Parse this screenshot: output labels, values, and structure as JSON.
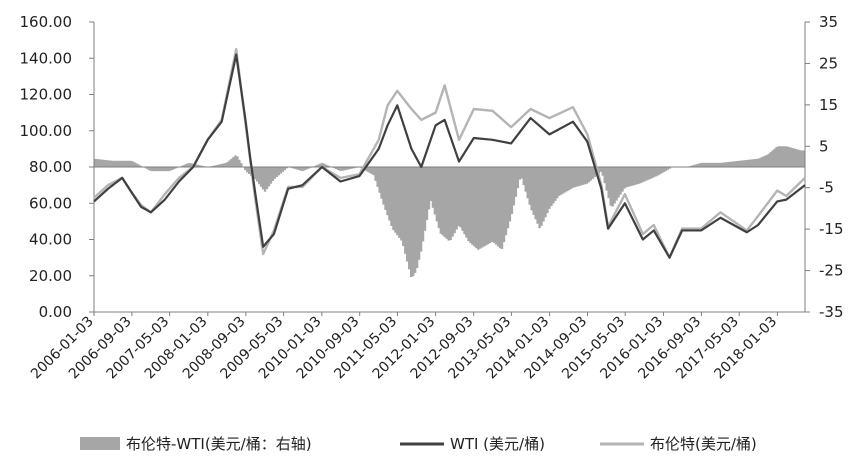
{
  "chart_data": {
    "type": "line",
    "title": "",
    "grid": false,
    "legend_position": "bottom",
    "colors": {
      "spread": "#a6a6a6",
      "wti": "#404040",
      "brent": "#b4b4b4",
      "axis": "#7f7f7f"
    },
    "left_axis": {
      "ylim": [
        0,
        160
      ],
      "tick_values": [
        0,
        20,
        40,
        60,
        80,
        100,
        120,
        140,
        160
      ],
      "tick_labels": [
        "0.00",
        "20.00",
        "40.00",
        "60.00",
        "80.00",
        "100.00",
        "120.00",
        "140.00",
        "160.00"
      ]
    },
    "right_axis": {
      "ylim": [
        -35,
        35
      ],
      "tick_values": [
        -35,
        -25,
        -15,
        -5,
        5,
        15,
        25,
        35
      ],
      "tick_labels": [
        "-35",
        "-25",
        "-15",
        "-5",
        "5",
        "15",
        "25",
        "35"
      ],
      "baseline": 0
    },
    "x_axis": {
      "range": [
        "2006-01-03",
        "2018-06-29"
      ],
      "tick_labels": [
        "2006-01-03",
        "2006-09-03",
        "2007-05-03",
        "2008-01-03",
        "2008-09-03",
        "2009-05-03",
        "2010-01-03",
        "2010-09-03",
        "2011-05-03",
        "2012-01-03",
        "2012-09-03",
        "2013-05-03",
        "2014-01-03",
        "2014-09-03",
        "2015-05-03",
        "2016-01-03",
        "2016-09-03",
        "2017-05-03",
        "2018-01-03"
      ]
    },
    "series": [
      {
        "key": "spread",
        "name": "布伦特-WTI(美元/桶：右轴)",
        "kind": "bar",
        "axis": "right",
        "x": [
          "2006-01-03",
          "2006-05-01",
          "2006-09-01",
          "2007-01-02",
          "2007-05-01",
          "2007-09-03",
          "2008-01-02",
          "2008-05-01",
          "2008-07-03",
          "2008-09-02",
          "2008-11-03",
          "2009-01-02",
          "2009-03-02",
          "2009-06-01",
          "2009-09-01",
          "2010-01-04",
          "2010-05-03",
          "2010-09-01",
          "2010-12-01",
          "2011-02-01",
          "2011-04-01",
          "2011-06-01",
          "2011-08-01",
          "2011-09-01",
          "2011-10-03",
          "2011-12-01",
          "2012-02-01",
          "2012-04-02",
          "2012-06-01",
          "2012-08-01",
          "2012-10-01",
          "2013-01-02",
          "2013-03-01",
          "2013-05-01",
          "2013-07-01",
          "2013-09-03",
          "2013-11-01",
          "2014-01-02",
          "2014-03-03",
          "2014-06-02",
          "2014-09-02",
          "2014-12-01",
          "2015-02-02",
          "2015-05-01",
          "2015-08-03",
          "2015-12-01",
          "2016-03-01",
          "2016-06-01",
          "2016-09-01",
          "2017-01-03",
          "2017-05-01",
          "2017-09-01",
          "2017-11-01",
          "2018-01-02",
          "2018-03-01",
          "2018-06-01"
        ],
        "values": [
          2,
          1.5,
          1.5,
          -1,
          -1,
          1,
          0,
          1,
          3,
          -1,
          -3,
          -6,
          -3,
          0,
          -1,
          1,
          -1,
          0,
          -2,
          -9,
          -15,
          -18,
          -27,
          -25,
          -20,
          -8,
          -16,
          -18,
          -14,
          -18,
          -20,
          -18,
          -20,
          -12,
          -2,
          -10,
          -15,
          -10,
          -7,
          -5,
          -4,
          -1,
          -10,
          -5,
          -4,
          -2,
          0,
          0,
          1,
          1,
          1.5,
          2,
          3,
          5,
          5,
          4
        ]
      },
      {
        "key": "wti",
        "name": "WTI (美元/桶)",
        "kind": "line",
        "axis": "left",
        "x": [
          "2006-01-03",
          "2006-04-03",
          "2006-07-03",
          "2006-09-01",
          "2006-11-01",
          "2007-01-03",
          "2007-04-02",
          "2007-07-02",
          "2007-10-01",
          "2008-01-02",
          "2008-04-01",
          "2008-07-03",
          "2008-09-02",
          "2008-10-01",
          "2008-11-03",
          "2008-12-23",
          "2009-03-02",
          "2009-06-01",
          "2009-09-01",
          "2010-01-04",
          "2010-05-03",
          "2010-09-01",
          "2011-01-03",
          "2011-03-01",
          "2011-05-02",
          "2011-08-01",
          "2011-10-03",
          "2012-01-03",
          "2012-03-01",
          "2012-06-01",
          "2012-09-04",
          "2013-01-02",
          "2013-05-01",
          "2013-09-03",
          "2014-01-02",
          "2014-06-02",
          "2014-09-02",
          "2014-12-01",
          "2015-01-13",
          "2015-05-01",
          "2015-08-24",
          "2015-11-02",
          "2016-02-11",
          "2016-05-02",
          "2016-09-01",
          "2017-01-03",
          "2017-06-21",
          "2017-09-01",
          "2018-01-02",
          "2018-03-01",
          "2018-06-29"
        ],
        "values": [
          61,
          68,
          74,
          66,
          58,
          55,
          62,
          72,
          80,
          95,
          105,
          142,
          105,
          85,
          65,
          36,
          43,
          68,
          70,
          80,
          72,
          75,
          90,
          103,
          114,
          90,
          80,
          103,
          106,
          83,
          96,
          95,
          93,
          107,
          98,
          105,
          94,
          68,
          46,
          60,
          40,
          45,
          30,
          45,
          45,
          52,
          44,
          48,
          61,
          62,
          70
        ]
      },
      {
        "key": "brent",
        "name": "布伦特(美元/桶)",
        "kind": "line",
        "axis": "left",
        "x": [
          "2006-01-03",
          "2006-04-03",
          "2006-07-03",
          "2006-09-01",
          "2006-11-01",
          "2007-01-03",
          "2007-04-02",
          "2007-07-02",
          "2007-10-01",
          "2008-01-02",
          "2008-04-01",
          "2008-07-03",
          "2008-09-02",
          "2008-10-01",
          "2008-11-03",
          "2008-12-23",
          "2009-03-02",
          "2009-06-01",
          "2009-09-01",
          "2010-01-04",
          "2010-05-03",
          "2010-09-01",
          "2011-01-03",
          "2011-03-01",
          "2011-05-02",
          "2011-08-01",
          "2011-10-03",
          "2012-01-03",
          "2012-03-01",
          "2012-06-01",
          "2012-09-04",
          "2013-01-02",
          "2013-05-01",
          "2013-09-03",
          "2014-01-02",
          "2014-06-02",
          "2014-09-02",
          "2014-12-01",
          "2015-01-13",
          "2015-05-01",
          "2015-08-24",
          "2015-11-02",
          "2016-02-11",
          "2016-05-02",
          "2016-09-01",
          "2017-01-03",
          "2017-06-21",
          "2017-09-01",
          "2018-01-02",
          "2018-03-01",
          "2018-06-29"
        ],
        "values": [
          63,
          70,
          74,
          66,
          59,
          55,
          65,
          74,
          80,
          95,
          106,
          145,
          103,
          84,
          62,
          32,
          45,
          69,
          69,
          80,
          74,
          76,
          95,
          114,
          122,
          112,
          106,
          110,
          125,
          95,
          112,
          111,
          102,
          112,
          107,
          113,
          98,
          70,
          47,
          65,
          43,
          48,
          30,
          46,
          46,
          55,
          45,
          53,
          67,
          64,
          74
        ]
      }
    ]
  }
}
